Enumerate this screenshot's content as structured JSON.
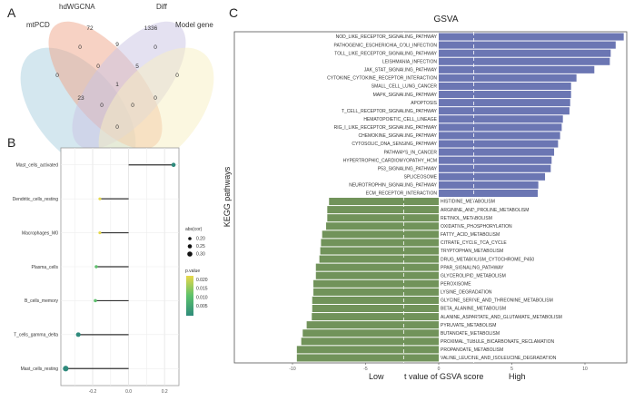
{
  "panels": {
    "a": "A",
    "b": "B",
    "c": "C"
  },
  "chart_data": [
    {
      "type": "venn",
      "sets": [
        {
          "name": "mtPCD",
          "color": "#a9cfe0"
        },
        {
          "name": "hdWGCNA",
          "color": "#f0a58a"
        },
        {
          "name": "Diff",
          "color": "#c9c3e3"
        },
        {
          "name": "Model gene",
          "color": "#f7f0c2"
        }
      ],
      "regions": [
        {
          "sets": [
            "hdWGCNA"
          ],
          "value": 72
        },
        {
          "sets": [
            "Diff"
          ],
          "value": 1336
        },
        {
          "sets": [
            "mtPCD",
            "hdWGCNA"
          ],
          "value": 0
        },
        {
          "sets": [
            "hdWGCNA",
            "Diff"
          ],
          "value": 9
        },
        {
          "sets": [
            "Diff",
            "Model gene"
          ],
          "value": 0
        },
        {
          "sets": [
            "mtPCD",
            "hdWGCNA",
            "Diff"
          ],
          "value": 0
        },
        {
          "sets": [
            "hdWGCNA",
            "Diff",
            "Model gene"
          ],
          "value": 5
        },
        {
          "sets": [
            "mtPCD"
          ],
          "value": 0
        },
        {
          "sets": [
            "Model gene"
          ],
          "value": 0
        },
        {
          "sets": [
            "mtPCD",
            "hdWGCNA",
            "Diff",
            "Model gene"
          ],
          "value": 1
        },
        {
          "sets": [
            "mtPCD",
            "Diff"
          ],
          "value": 23
        },
        {
          "sets": [
            "mtPCD",
            "Diff",
            "Model gene"
          ],
          "value": 0
        },
        {
          "sets": [
            "mtPCD",
            "hdWGCNA",
            "Model gene"
          ],
          "value": 0
        },
        {
          "sets": [
            "hdWGCNA",
            "Model gene"
          ],
          "value": 0
        },
        {
          "sets": [
            "mtPCD",
            "Model gene"
          ],
          "value": 0
        }
      ]
    },
    {
      "type": "lollipop",
      "categories": [
        "Mast_cells_activated",
        "Dendritic_cells_resting",
        "Macrophages_M0",
        "Plasma_cells",
        "B_cells_memory",
        "T_cells_gamma_delta",
        "Mast_cells_resting"
      ],
      "values": [
        0.25,
        -0.16,
        -0.16,
        -0.18,
        -0.185,
        -0.28,
        -0.35
      ],
      "p_values": [
        0.003,
        0.021,
        0.02,
        0.011,
        0.01,
        0.004,
        0.002
      ],
      "xticks": [
        "-0.2",
        "0.0",
        "0.2"
      ],
      "xtick_values": [
        -0.2,
        0,
        0.2
      ],
      "xlim": [
        -0.377,
        0.28
      ],
      "grid": true,
      "legend_size": {
        "title": "abs(cor)",
        "labels": [
          "0.20",
          "0.25",
          "0.30"
        ],
        "values": [
          0.2,
          0.25,
          0.3
        ]
      },
      "legend_color": {
        "title": "p.value",
        "labels": [
          "0.020",
          "0.015",
          "0.010",
          "0.005"
        ],
        "values": [
          0.02,
          0.015,
          0.01,
          0.005
        ],
        "colors": [
          "#e8d84a",
          "#5cc26b",
          "#2e8b7a"
        ]
      },
      "legend_placement": "right"
    },
    {
      "type": "bar",
      "orientation": "horizontal",
      "title": "GSVA",
      "ylabel": "KEGG pathways",
      "xlabel": "t value of GSVA score",
      "xlabel_low": "Low",
      "xlabel_high": "High",
      "xticks": [
        "-10",
        "-5",
        "0",
        "5",
        "10"
      ],
      "xtick_values": [
        -10,
        -5,
        0,
        5,
        10
      ],
      "xlim": [
        -10.5,
        12.8
      ],
      "thresholds": [
        -2.4,
        2.4
      ],
      "colors": {
        "up": "#6b76b3",
        "down": "#71935a"
      },
      "categories": [
        "NOD_LIKE_RECEPTOR_SIGNALING_PATHWAY",
        "PATHOGENIC_ESCHERICHIA_COLI_INFECTION",
        "TOLL_LIKE_RECEPTOR_SIGNALING_PATHWAY",
        "LEISHMANIA_INFECTION",
        "JAK_STAT_SIGNALING_PATHWAY",
        "CYTOKINE_CYTOKINE_RECEPTOR_INTERACTION",
        "SMALL_CELL_LUNG_CANCER",
        "MAPK_SIGNALING_PATHWAY",
        "APOPTOSIS",
        "T_CELL_RECEPTOR_SIGNALING_PATHWAY",
        "HEMATOPOIETIC_CELL_LINEAGE",
        "RIG_I_LIKE_RECEPTOR_SIGNALING_PATHWAY",
        "CHEMOKINE_SIGNALING_PATHWAY",
        "CYTOSOLIC_DNA_SENSING_PATHWAY",
        "PATHWAYS_IN_CANCER",
        "HYPERTROPHIC_CARDIOMYOPATHY_HCM",
        "P53_SIGNALING_PATHWAY",
        "SPLICEOSOME",
        "NEUROTROPHIN_SIGNALING_PATHWAY",
        "ECM_RECEPTOR_INTERACTION",
        "HISTIDINE_METABOLISM",
        "ARGININE_AND_PROLINE_METABOLISM",
        "RETINOL_METABOLISM",
        "OXIDATIVE_PHOSPHORYLATION",
        "FATTY_ACID_METABOLISM",
        "CITRATE_CYCLE_TCA_CYCLE",
        "TRYPTOPHAN_METABOLISM",
        "DRUG_METABOLISM_CYTOCHROME_P450",
        "PPAR_SIGNALING_PATHWAY",
        "GLYCEROLIPID_METABOLISM",
        "PEROXISOME",
        "LYSINE_DEGRADATION",
        "GLYCINE_SERINE_AND_THREONINE_METABOLISM",
        "BETA_ALANINE_METABOLISM",
        "ALANINE_ASPARTATE_AND_GLUTAMATE_METABOLISM",
        "PYRUVATE_METABOLISM",
        "BUTANOATE_METABOLISM",
        "PROXIMAL_TUBULE_BICARBONATE_RECLAMATION",
        "PROPANOATE_METABOLISM",
        "VALINE_LEUCINE_AND_ISOLEUCINE_DEGRADATION"
      ],
      "values": [
        12.65,
        12.1,
        11.76,
        11.7,
        10.64,
        9.42,
        9.05,
        9.05,
        8.99,
        8.94,
        8.49,
        8.41,
        8.3,
        8.16,
        7.89,
        7.72,
        7.66,
        7.27,
        6.81,
        6.77,
        -7.5,
        -7.62,
        -7.62,
        -7.7,
        -7.97,
        -8.05,
        -8.1,
        -8.16,
        -8.4,
        -8.4,
        -8.57,
        -8.57,
        -8.65,
        -8.65,
        -8.68,
        -9.03,
        -9.3,
        -9.4,
        -9.7,
        -9.7
      ]
    }
  ]
}
